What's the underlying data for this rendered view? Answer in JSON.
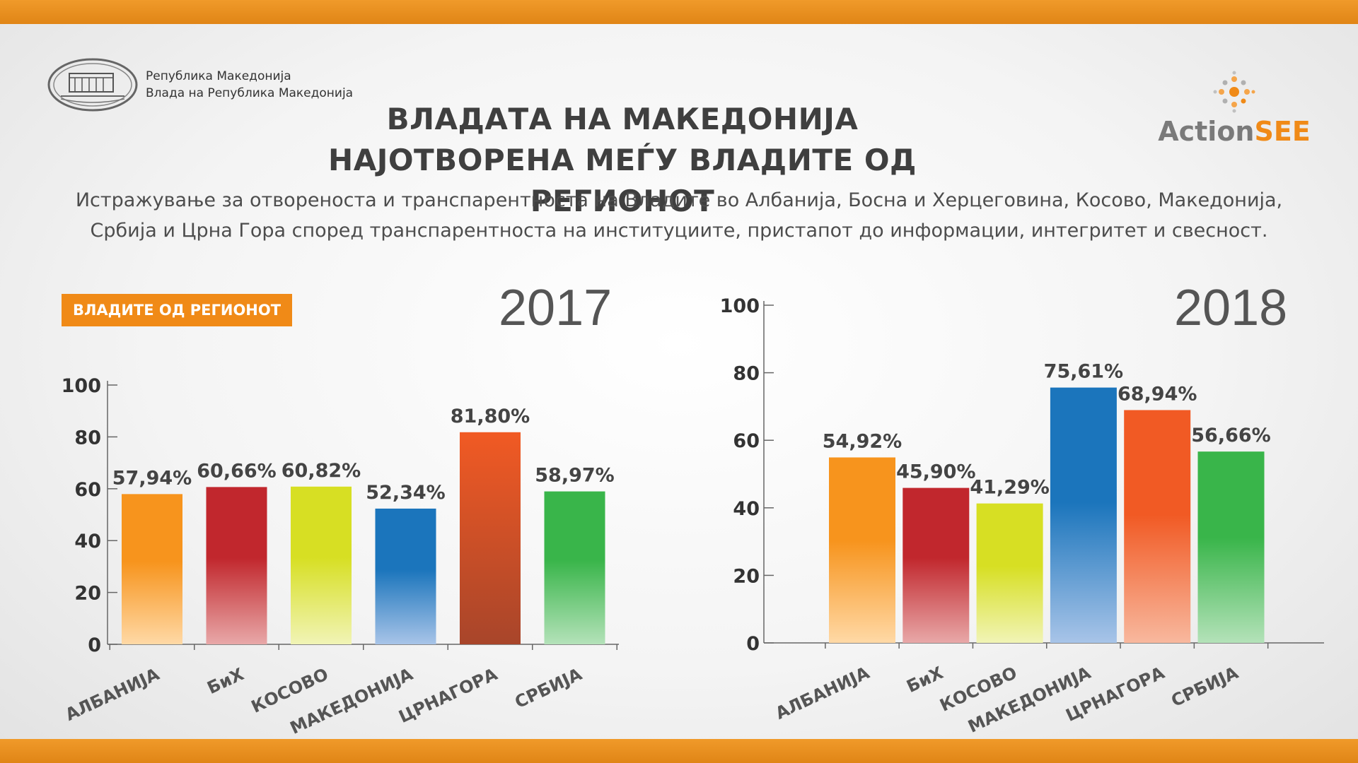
{
  "header": {
    "gov_line1": "Република Македонија",
    "gov_line2": "Влада на Република Македонија",
    "title_line1": "ВЛАДАТА НА МАКЕДОНИЈА",
    "title_line2": "НАЈОТВОРЕНА МЕЃУ ВЛАДИТЕ ОД РЕГИОНОТ",
    "subtitle_line1": "Истражување за отвореноста и транспарентноста на Владите во Албанија, Босна и Херцеговина, Косово, Македонија,",
    "subtitle_line2": "Србија и Црна Гора според транспарентноста на институциите, пристапот до информации, интегритет и свесност.",
    "logo_text_a": "Action",
    "logo_text_b": "SEE",
    "badge": "ВЛАДИТЕ ОД РЕГИОНОТ"
  },
  "colors": {
    "band": "#e8901f",
    "accent": "#f08a17",
    "bars": [
      "#f7941d",
      "#c1272d",
      "#d7df23",
      "#1b75bc",
      "#f15a24",
      "#39b54a"
    ]
  },
  "chart_data": [
    {
      "type": "bar",
      "year_label": "2017",
      "categories": [
        "АЛБАНИЈА",
        "БиХ",
        "КОСОВО",
        "МАКЕДОНИЈА",
        "ЦРНАГОРА",
        "СРБИЈА"
      ],
      "values": [
        57.94,
        60.66,
        60.82,
        52.34,
        81.8,
        58.97
      ],
      "value_labels": [
        "57,94%",
        "60,66%",
        "60,82%",
        "52,34%",
        "81,80%",
        "58,97%"
      ],
      "ylim": [
        0,
        100
      ],
      "yticks": [
        "0",
        "20",
        "40",
        "60",
        "80",
        "100"
      ]
    },
    {
      "type": "bar",
      "year_label": "2018",
      "categories": [
        "АЛБАНИЈА",
        "БиХ",
        "КОСОВО",
        "МАКЕДОНИЈА",
        "ЦРНАГОРА",
        "СРБИЈА"
      ],
      "values": [
        54.92,
        45.9,
        41.29,
        75.61,
        68.94,
        56.66
      ],
      "value_labels": [
        "54,92%",
        "45,90%",
        "41,29%",
        "75,61%",
        "68,94%",
        "56,66%"
      ],
      "ylim": [
        0,
        100
      ],
      "yticks": [
        "0",
        "20",
        "40",
        "60",
        "80",
        "100"
      ]
    }
  ]
}
